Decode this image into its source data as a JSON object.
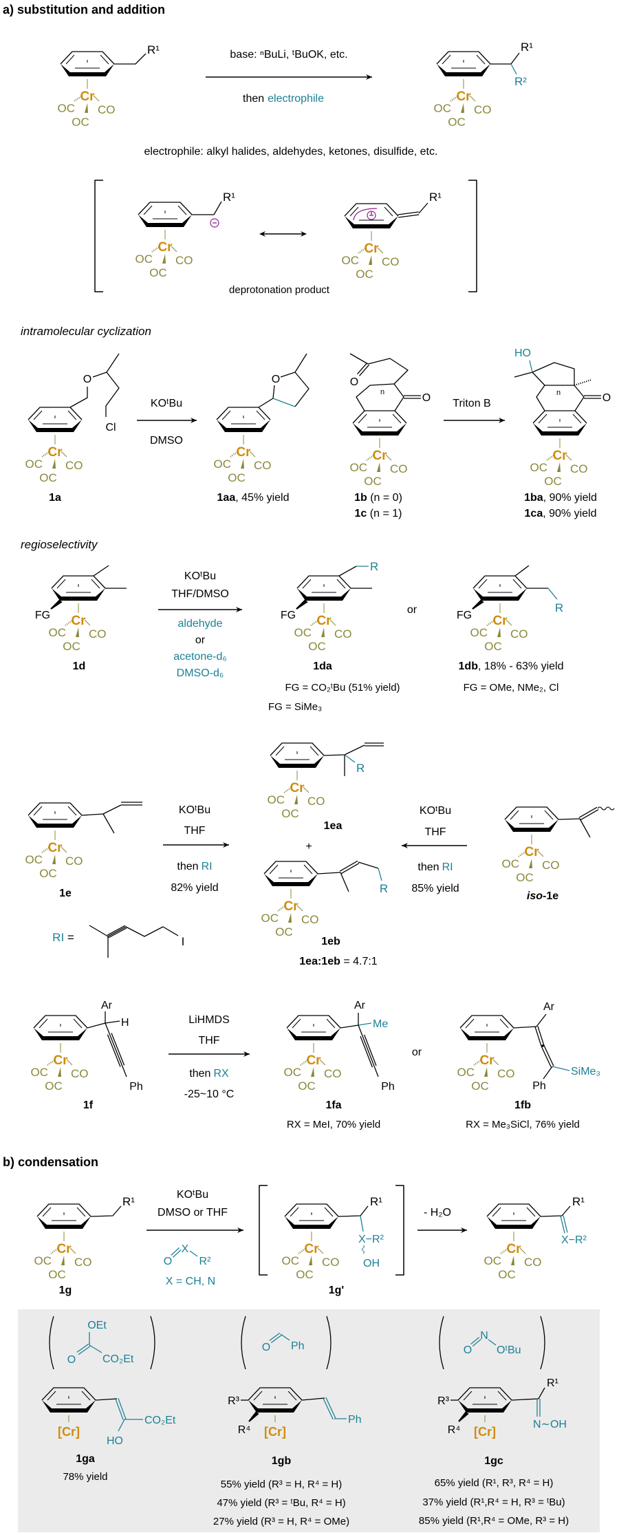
{
  "colors": {
    "black": "#000000",
    "olive": "#8a883a",
    "orange": "#d08c0e",
    "teal": "#1c8095",
    "purple": "#8e1f8e",
    "box": "#ebebeb"
  },
  "fragments": {
    "cr": "Cr",
    "oc": "OC",
    "co": "CO",
    "cr_bracket": "[Cr]",
    "r": "R",
    "r1": "R¹",
    "r2": "R²",
    "ar": "Ar",
    "ph": "Ph",
    "h": "H",
    "me": "Me",
    "o": "O",
    "or": "or"
  },
  "section_a": {
    "title": "a) substitution and addition",
    "base_reagents": "base: ⁿBuLi, ᵗBuOK, etc.",
    "then": "then",
    "electrophile": "electrophile",
    "electrophile_list": "electrophile: alkyl halides, aldehydes, ketones, disulfide, etc.",
    "deprotonation": "deprotonation product"
  },
  "cyclization": {
    "title": "intramolecular cyclization",
    "cl": "Cl",
    "ho": "HO",
    "n": "n",
    "reagent1": "KOᵗBu",
    "solvent1": "DMSO",
    "reagent2": "Triton B",
    "label_1a": "1a",
    "label_1aa": "1aa",
    "yield_1aa": ", 45% yield",
    "label_1b": "1b",
    "cond_1b": " (n = 0)",
    "label_1c": "1c",
    "cond_1c": " (n = 1)",
    "label_1ba": "1ba",
    "yield_1ba": ", 90% yield",
    "label_1ca": "1ca",
    "yield_1ca": ", 90% yield"
  },
  "regio": {
    "title": "regioselectivity",
    "fg": "FG",
    "reagent": "KOᵗBu",
    "solvent": "THF/DMSO",
    "electrophile1": "aldehyde",
    "or": "or",
    "electrophile2": "acetone-d₆",
    "electrophile3": "DMSO-d₆",
    "label_1d": "1d",
    "label_1da": "1da",
    "fg_1da_a": "FG = CO₂ᵗBu (51% yield)",
    "fg_1da_b": "FG = SiMe₃",
    "label_1db": "1db",
    "yield_1db": ", 18% - 63% yield",
    "fg_1db": "FG = OMe, NMe₂, Cl"
  },
  "allyl": {
    "reagent": "KOᵗBu",
    "solvent": "THF",
    "then": "then",
    "ri": "RI",
    "yield_left": "82% yield",
    "yield_right": "85% yield",
    "label_1e": "1e",
    "label_1ea": "1ea",
    "label_1eb": "1eb",
    "plus": "+",
    "iso_prefix": "iso",
    "iso_suffix": "-1e",
    "ratio_label": "1ea:1eb",
    "ratio_value": " = 4.7:1",
    "ri_equals": " =",
    "iodine": "I"
  },
  "propargyl": {
    "reagent": "LiHMDS",
    "solvent": "THF",
    "then": "then",
    "rx": "RX",
    "temperature": "-25~10 °C",
    "label_1f": "1f",
    "label_1fa": "1fa",
    "label_1fb": "1fb",
    "rx_1fa": "RX = MeI, 70% yield",
    "rx_1fb": "RX = Me₃SiCl, 76% yield",
    "sime3": "SiMe₃"
  },
  "section_b": {
    "title": "b) condensation",
    "reagent": "KOᵗBu",
    "solvent": "DMSO or THF",
    "x": "X",
    "x_def": "X = CH, N",
    "x_r2": "X−R²",
    "oh": "OH",
    "minus_water": "- H₂O",
    "label_1g": "1g",
    "label_1g_prime": "1g'"
  },
  "examples": {
    "oet": "OEt",
    "co2et": "CO₂Et",
    "ho": "HO",
    "n": "N",
    "otbu": "OᵗBu",
    "r3": "R³",
    "r4": "R⁴",
    "n_oh": "N∼OH",
    "label_1ga": "1ga",
    "yield_1ga": "78% yield",
    "label_1gb": "1gb",
    "yields_1gb": [
      "55% yield (R³ = H, R⁴ = H)",
      "47% yield (R³ = ᵗBu, R⁴ = H)",
      "27% yield (R³ = H, R⁴ = OMe)"
    ],
    "label_1gc": "1gc",
    "yields_1gc": [
      "65% yield (R¹, R³, R⁴ = H)",
      "37% yield (R¹,R⁴ = H, R³ = ᵗBu)",
      "85% yield (R¹,R⁴ = OMe, R³ = H)"
    ]
  }
}
